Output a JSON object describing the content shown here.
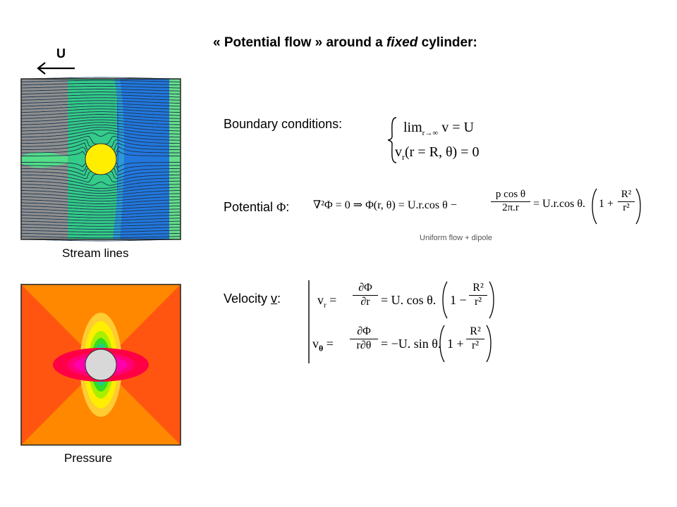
{
  "title": {
    "prefix": "« Potential flow » around a ",
    "emphasis": "fixed",
    "suffix": " cylinder:"
  },
  "flow_arrow_label": "U",
  "captions": {
    "stream_lines": "Stream lines",
    "pressure": "Pressure"
  },
  "labels": {
    "boundary_conditions": "Boundary conditions:",
    "potential_prefix": "Potential ",
    "potential_symbol": "Φ",
    "potential_suffix": ":",
    "velocity_prefix": "Velocity ",
    "velocity_symbol": "v",
    "velocity_suffix": ":",
    "uniform_flow_note": "Uniform flow + dipole"
  },
  "equations": {
    "bc_line1_lim": "lim",
    "bc_line1_sub": "r→∞",
    "bc_line1_rest": "v = U",
    "bc_line2": "v_r(r = R, θ) = 0",
    "bc_line2_v": "v",
    "bc_line2_sub": "r",
    "bc_line2_rest": "(r = R, θ) = 0",
    "potential_laplace": "∇²Φ = 0",
    "potential_implies": "⇒",
    "potential_lhs": "Φ(r, θ) = U.r.cos θ −",
    "potential_frac_num": "p cos θ",
    "potential_frac_den": "2π.r",
    "potential_mid": "= U.r.cos θ.",
    "potential_paren_one": "1 +",
    "potential_R2": "R²",
    "potential_r2": "r²",
    "vr_lhs_v": "v",
    "vr_lhs_sub": "r",
    "vr_eq": "=",
    "vr_num": "∂Φ",
    "vr_den": "∂r",
    "vr_mid": "= U. cos θ.",
    "vr_paren_one": "1 −",
    "vr_R2": "R²",
    "vr_r2": "r²",
    "vt_lhs_v": "v",
    "vt_lhs_sub": "θ",
    "vt_eq": "=",
    "vt_num": "∂Φ",
    "vt_den": "r∂θ",
    "vt_mid": "= −U. sin θ.",
    "vt_paren_one": "1 +",
    "vt_R2": "R²",
    "vt_r2": "r²"
  },
  "colors": {
    "stream_gray": "#8f8f8f",
    "stream_green": "#33cc88",
    "stream_blue": "#2277dd",
    "cylinder_yellow": "#ffee00",
    "pressure_orange": "#ff8800",
    "pressure_redorange": "#ff5511",
    "pressure_red": "#ff0044",
    "pressure_magenta": "#ff00aa",
    "pressure_green": "#33dd22",
    "pressure_yellow": "#ffdd00",
    "cylinder_gray": "#d8d8d8"
  }
}
